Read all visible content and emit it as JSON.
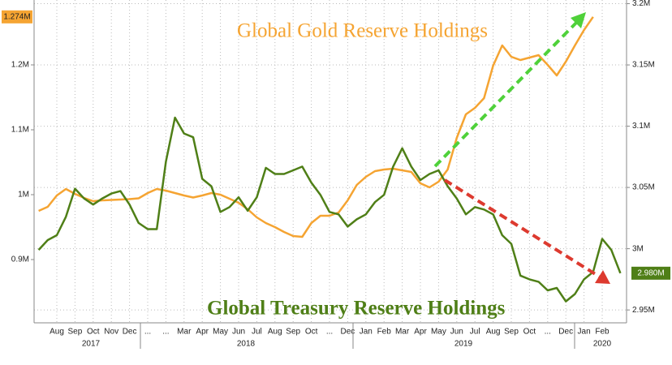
{
  "chart_data": {
    "type": "line",
    "categories": [
      null,
      null,
      "Aug",
      null,
      "Sep",
      null,
      "Oct",
      null,
      "Nov",
      null,
      "Dec",
      null,
      "...",
      null,
      "...",
      null,
      "Mar",
      null,
      "Apr",
      null,
      "May",
      null,
      "Jun",
      null,
      "Jul",
      null,
      "Aug",
      null,
      "Sep",
      null,
      "Oct",
      null,
      "...",
      null,
      "Dec",
      null,
      "Jan",
      null,
      "Feb",
      null,
      "Mar",
      null,
      "Apr",
      null,
      "May",
      null,
      "Jun",
      null,
      "Jul",
      null,
      "Aug",
      null,
      "Sep",
      null,
      "Oct",
      null,
      "...",
      null,
      "Dec",
      null,
      "Jan",
      null,
      "Feb",
      null,
      null
    ],
    "years": [
      "2017",
      "2018",
      "2019",
      "2020"
    ],
    "series": [
      {
        "name": "Global Gold Reserve Holdings",
        "color": "#f5a432",
        "axis": "y",
        "last_value_label": "1.274M",
        "values": [
          975000,
          981250,
          998750,
          1008750,
          1001250,
          995000,
          990000,
          991250,
          991900,
          992500,
          993100,
          994400,
          1002500,
          1008750,
          1006250,
          1002500,
          998750,
          995600,
          998750,
          1002500,
          1000000,
          993750,
          987500,
          977500,
          965000,
          956250,
          950000,
          942500,
          936250,
          935000,
          956250,
          967500,
          967500,
          972500,
          991250,
          1015000,
          1027500,
          1036250,
          1038750,
          1040000,
          1037500,
          1035000,
          1017500,
          1011250,
          1020000,
          1038750,
          1087500,
          1123750,
          1133750,
          1148750,
          1198750,
          1230000,
          1212500,
          1207500,
          1211250,
          1215000,
          1200000,
          1183750,
          1205000,
          1230000,
          1253750,
          1274000,
          null,
          null,
          null
        ]
      },
      {
        "name": "Global Treasury Reserve Holdings",
        "color": "#4f7f17",
        "axis": "y2",
        "last_value_label": "2.980M",
        "values": [
          2999000,
          3007000,
          3011000,
          3026000,
          3049000,
          3041000,
          3036000,
          3041000,
          3045000,
          3047000,
          3036000,
          3021000,
          3016000,
          3016000,
          3071000,
          3107000,
          3094000,
          3091000,
          3057000,
          3051000,
          3030000,
          3034000,
          3042000,
          3031000,
          3042000,
          3066000,
          3061000,
          3061000,
          3064000,
          3067000,
          3054000,
          3044000,
          3030000,
          3028000,
          3018000,
          3024000,
          3028000,
          3038000,
          3044000,
          3067000,
          3082000,
          3067000,
          3056000,
          3061000,
          3064000,
          3051000,
          3041000,
          3028000,
          3034000,
          3032000,
          3028000,
          3011000,
          3004000,
          2978000,
          2975000,
          2973000,
          2966000,
          2968000,
          2957000,
          2963000,
          2975000,
          2981000,
          3008000,
          2999000,
          2980000
        ]
      }
    ],
    "ylim": [
      802500,
      1300000
    ],
    "yticks": [
      {
        "value": 900000,
        "label": "0.9M"
      },
      {
        "value": 1000000,
        "label": "1M"
      },
      {
        "value": 1100000,
        "label": "1.1M"
      },
      {
        "value": 1200000,
        "label": "1.2M"
      }
    ],
    "y2lim": [
      2939500,
      3203000
    ],
    "y2ticks": [
      {
        "value": 2950000,
        "label": "2.95M"
      },
      {
        "value": 3000000,
        "label": "3M"
      },
      {
        "value": 3050000,
        "label": "3.05M"
      },
      {
        "value": 3100000,
        "label": "3.1M"
      },
      {
        "value": 3150000,
        "label": "3.15M"
      },
      {
        "value": 3200000,
        "label": "3.2M"
      }
    ],
    "grid": true,
    "annotations": [
      "Global Gold Reserve Holdings",
      "Global Treasury Reserve Holdings"
    ]
  }
}
